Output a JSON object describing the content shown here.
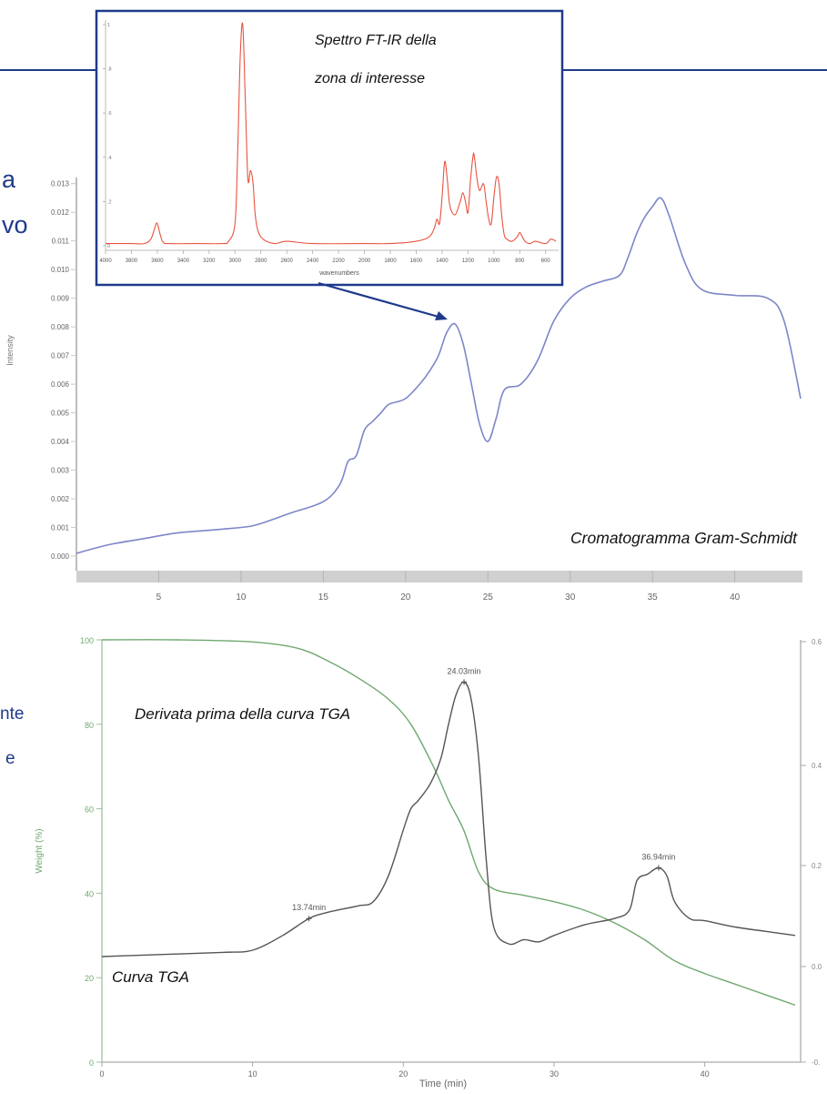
{
  "edge_fragments": {
    "line1": "a",
    "line2": "vo",
    "line3": "nte",
    "line4": "e"
  },
  "colors": {
    "frame": "#1f3a8a",
    "gram_schmidt": "#7d86c8",
    "ftir": "#e8533f",
    "tga": "#6fa86f",
    "dtg": "#555555",
    "axis_gray": "#c8c8c8",
    "tick_text": "#666666"
  },
  "annotations": {
    "ftir_caption_line1": "Spettro FT-IR della",
    "ftir_caption_line2": "zona di interesse",
    "gram_schmidt_caption": "Cromatogramma Gram-Schmidt",
    "dtg_caption": "Derivata prima della curva TGA",
    "tga_caption": "Curva TGA"
  },
  "chart_data": [
    {
      "id": "gram_schmidt",
      "type": "line",
      "ylabel": "Intensity",
      "xlim": [
        0,
        44
      ],
      "ylim": [
        0,
        0.0135
      ],
      "xticks": [
        5,
        10,
        15,
        20,
        25,
        30,
        35,
        40
      ],
      "xtick_labels": [
        "5",
        "10",
        "15",
        "20",
        "25",
        "30",
        "35",
        "40"
      ],
      "yticks": [
        0,
        0.001,
        0.002,
        0.003,
        0.004,
        0.005,
        0.006,
        0.007,
        0.008,
        0.009,
        0.01,
        0.011,
        0.012,
        0.013
      ],
      "ytick_labels": [
        "0.000",
        "0.001",
        "0.002",
        "0.003",
        "0.004",
        "0.005",
        "0.006",
        "0.007",
        "0.008",
        "0.009",
        "0.010",
        "0.011",
        "0.012",
        "0.013"
      ],
      "x": [
        0,
        2,
        4,
        6,
        8,
        10,
        11,
        13,
        15,
        16,
        16.5,
        17,
        17.5,
        18,
        18.5,
        19,
        20,
        21,
        21.5,
        22,
        22.5,
        23,
        23.5,
        24,
        24.5,
        25,
        25.5,
        26,
        27,
        28,
        29,
        30,
        31,
        32,
        33,
        33.5,
        34,
        34.5,
        35,
        35.5,
        36,
        37,
        38,
        40,
        42,
        43,
        44
      ],
      "y": [
        0.0001,
        0.0004,
        0.0006,
        0.0008,
        0.0009,
        0.001,
        0.0011,
        0.0015,
        0.0019,
        0.0025,
        0.0033,
        0.0035,
        0.0044,
        0.0047,
        0.005,
        0.0053,
        0.0055,
        0.0061,
        0.0065,
        0.007,
        0.0078,
        0.0081,
        0.0074,
        0.006,
        0.0046,
        0.004,
        0.0048,
        0.0058,
        0.006,
        0.0068,
        0.0082,
        0.009,
        0.0094,
        0.0096,
        0.0098,
        0.0104,
        0.0112,
        0.0118,
        0.0122,
        0.0125,
        0.0119,
        0.0102,
        0.0093,
        0.0091,
        0.009,
        0.0082,
        0.0055
      ]
    },
    {
      "id": "ftir",
      "type": "line",
      "xlabel": "wavenumbers",
      "xlim": [
        4000,
        500
      ],
      "ylim": [
        0,
        1
      ],
      "xticks": [
        4000,
        3800,
        3600,
        3400,
        3200,
        3000,
        2800,
        2600,
        2400,
        2200,
        2000,
        1800,
        1600,
        1400,
        1200,
        1000,
        800,
        600
      ],
      "xtick_labels": [
        "4000",
        "3800",
        "3600",
        "3400",
        "3200",
        "3000",
        "2800",
        "2600",
        "2400",
        "2200",
        "2000",
        "1800",
        "1600",
        "1400",
        "1200",
        "1000",
        "800",
        "600"
      ],
      "yticks": [
        0,
        0.2,
        0.4,
        0.6,
        0.8,
        1
      ],
      "ytick_labels": [
        "0",
        ".2",
        ".4",
        ".6",
        ".8",
        "1"
      ],
      "x": [
        4000,
        3800,
        3700,
        3650,
        3620,
        3600,
        3560,
        3500,
        3300,
        3100,
        3050,
        3000,
        2980,
        2960,
        2940,
        2920,
        2900,
        2880,
        2860,
        2840,
        2800,
        2700,
        2600,
        2400,
        2000,
        1800,
        1600,
        1500,
        1460,
        1440,
        1420,
        1400,
        1380,
        1360,
        1340,
        1300,
        1260,
        1240,
        1220,
        1200,
        1180,
        1160,
        1150,
        1130,
        1110,
        1080,
        1060,
        1040,
        1020,
        1000,
        980,
        960,
        940,
        920,
        900,
        860,
        820,
        800,
        780,
        760,
        720,
        680,
        600,
        560,
        520
      ],
      "y": [
        0.01,
        0.01,
        0.01,
        0.03,
        0.08,
        0.1,
        0.02,
        0.01,
        0.01,
        0.01,
        0.02,
        0.1,
        0.4,
        0.85,
        1.0,
        0.65,
        0.3,
        0.34,
        0.28,
        0.12,
        0.04,
        0.01,
        0.02,
        0.01,
        0.01,
        0.01,
        0.02,
        0.04,
        0.08,
        0.12,
        0.1,
        0.22,
        0.38,
        0.3,
        0.18,
        0.14,
        0.2,
        0.24,
        0.2,
        0.15,
        0.3,
        0.41,
        0.4,
        0.3,
        0.25,
        0.28,
        0.2,
        0.12,
        0.1,
        0.22,
        0.31,
        0.28,
        0.14,
        0.05,
        0.03,
        0.02,
        0.04,
        0.06,
        0.04,
        0.02,
        0.01,
        0.02,
        0.01,
        0.03,
        0.02
      ]
    },
    {
      "id": "tga_dtg",
      "type": "line",
      "xlabel": "Time (min)",
      "ylabel": "Weight (%)",
      "xlim": [
        0,
        46
      ],
      "ylim": [
        0,
        100
      ],
      "xticks": [
        0,
        10,
        20,
        30,
        40
      ],
      "xtick_labels": [
        "0",
        "10",
        "20",
        "30",
        "40"
      ],
      "yticks": [
        0,
        20,
        40,
        60,
        80,
        100
      ],
      "ytick_labels": [
        "0",
        "20",
        "40",
        "60",
        "80",
        "100"
      ],
      "right_ytick_labels": [
        "-0.",
        "0.0",
        "0.2",
        "0.4",
        "0.6"
      ],
      "series": [
        {
          "key": "tga",
          "x": [
            0,
            5,
            10,
            13,
            15,
            17,
            19,
            20.5,
            22,
            23,
            24,
            25,
            26,
            28,
            30,
            32,
            34,
            36,
            38,
            40,
            42,
            44,
            46
          ],
          "y": [
            100,
            100,
            99.5,
            98,
            95,
            91,
            86,
            80,
            70,
            62,
            55,
            45,
            41,
            39.5,
            38,
            36,
            33,
            29,
            24,
            21,
            18.5,
            16,
            13.5
          ]
        },
        {
          "key": "dtg",
          "x": [
            0,
            4,
            8,
            10,
            12,
            13.74,
            15,
            17,
            18,
            19,
            20,
            20.5,
            21,
            21.8,
            22.5,
            23,
            23.5,
            24.03,
            24.5,
            25,
            25.5,
            26,
            27,
            28,
            29,
            30,
            32,
            34,
            35,
            35.5,
            36.2,
            36.94,
            37.5,
            38,
            39,
            40,
            42,
            44,
            46
          ],
          "y": [
            25,
            25.5,
            26,
            26.5,
            30,
            34,
            35.5,
            37,
            38,
            44,
            55,
            60,
            62,
            66,
            72,
            80,
            87,
            90,
            86,
            72,
            48,
            32,
            28,
            29,
            28.5,
            30,
            32.5,
            34,
            36,
            43,
            44.5,
            46,
            44,
            38,
            34,
            33.5,
            32,
            31,
            30
          ]
        }
      ],
      "peak_labels": [
        {
          "x": 24.03,
          "y": 90,
          "text": "24.03min"
        },
        {
          "x": 13.74,
          "y": 34,
          "text": "13.74min"
        },
        {
          "x": 36.94,
          "y": 46,
          "text": "36.94min"
        }
      ]
    }
  ]
}
